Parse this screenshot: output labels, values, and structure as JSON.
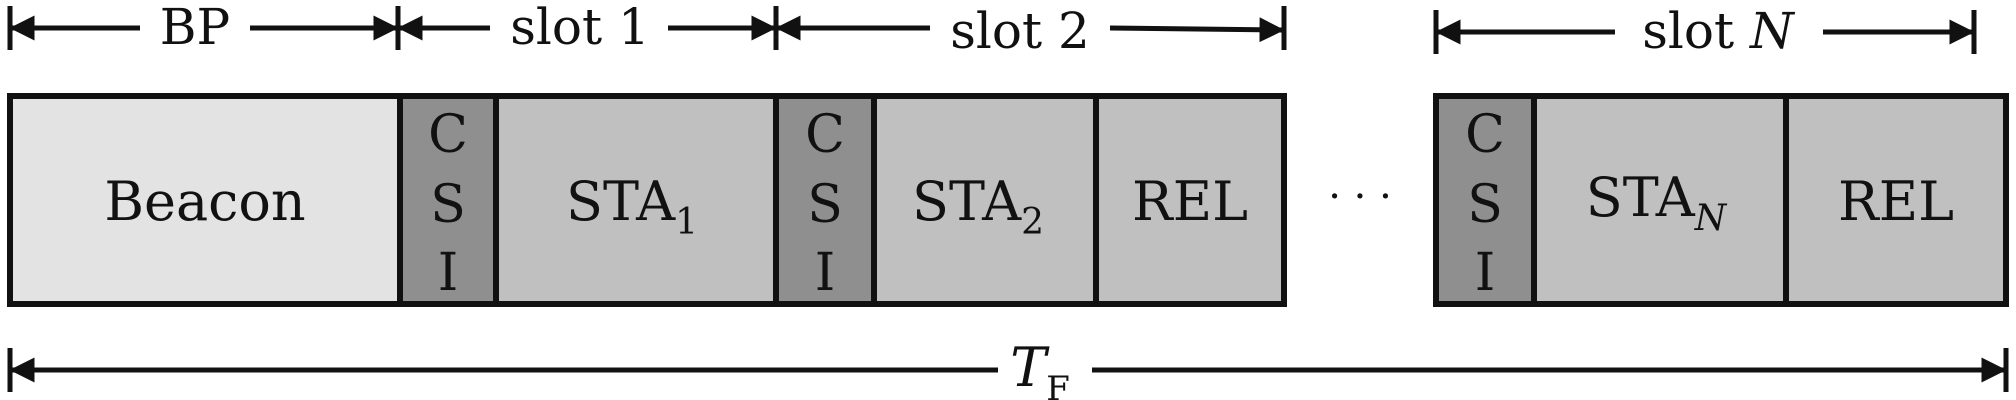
{
  "diagram": {
    "top_labels": {
      "bp": "BP",
      "slot1": "slot 1",
      "slot2": "slot 2",
      "slotN_prefix": "slot ",
      "slotN_var": "N"
    },
    "blocks": {
      "beacon": "Beacon",
      "csi": [
        "C",
        "S",
        "I"
      ],
      "sta_base": "STA",
      "sta1_sub": "1",
      "sta2_sub": "2",
      "staN_sub": "N",
      "rel": "REL"
    },
    "ellipsis": "· · ·",
    "frame_label": {
      "var": "T",
      "sub": "F"
    }
  },
  "colors": {
    "beacon": "#e3e3e3",
    "csi": "#8f8f8f",
    "sta": "#c0c0c0",
    "rel": "#c0c0c0",
    "stroke": "#111111"
  }
}
